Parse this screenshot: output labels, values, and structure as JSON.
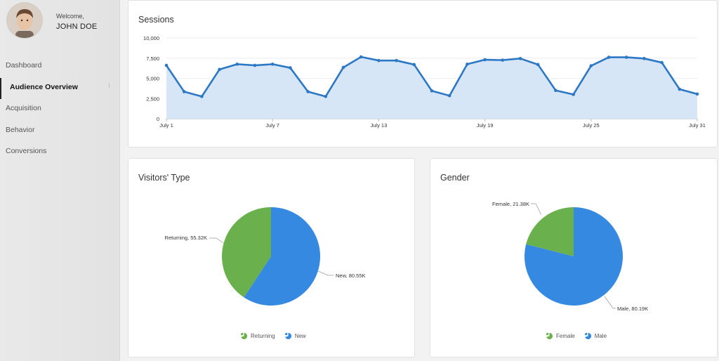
{
  "sidebar": {
    "welcome": "Welcome,",
    "username": "JOHN DOE",
    "items": [
      {
        "label": "Dashboard",
        "active": false
      },
      {
        "label": "Audience Overview",
        "active": true
      },
      {
        "label": "Acquisition",
        "active": false
      },
      {
        "label": "Behavior",
        "active": false
      },
      {
        "label": "Conversions",
        "active": false
      }
    ]
  },
  "colors": {
    "line": "#2d78c4",
    "area": "#d6e6f7",
    "blue": "#3689e0",
    "green": "#6ab04c"
  },
  "sessions_card": {
    "title": "Sessions"
  },
  "visitors_card": {
    "title": "Visitors' Type",
    "labels": {
      "returning": "Returning, 55.32K",
      "new": "New, 80.55K"
    },
    "legend": {
      "returning": "Returning",
      "new": "New"
    }
  },
  "gender_card": {
    "title": "Gender",
    "labels": {
      "female": "Female, 21.38K",
      "male": "Male, 80.19K"
    },
    "legend": {
      "female": "Female",
      "male": "Male"
    }
  },
  "chart_data": [
    {
      "type": "area",
      "title": "Sessions",
      "x_ticks": [
        "July 1",
        "July 7",
        "July 13",
        "July 19",
        "July 25",
        "July 31"
      ],
      "y_ticks": [
        "0",
        "2,500",
        "5,000",
        "7,500",
        "10,000"
      ],
      "ylim": [
        0,
        10000
      ],
      "x": [
        1,
        2,
        3,
        4,
        5,
        6,
        7,
        8,
        9,
        10,
        11,
        12,
        13,
        14,
        15,
        16,
        17,
        18,
        19,
        20,
        21,
        22,
        23,
        24,
        25,
        26,
        27,
        28,
        29,
        30,
        31
      ],
      "values": [
        6600,
        3350,
        2750,
        6100,
        6750,
        6600,
        6750,
        6300,
        3350,
        2750,
        6350,
        7650,
        7200,
        7200,
        6700,
        3450,
        2850,
        6750,
        7300,
        7250,
        7450,
        6700,
        3500,
        3000,
        6550,
        7600,
        7600,
        7450,
        6950,
        3650,
        3050
      ],
      "grid": true
    },
    {
      "type": "pie",
      "title": "Visitors' Type",
      "slices": [
        {
          "name": "Returning",
          "value": 55.32
        },
        {
          "name": "New",
          "value": 80.55
        }
      ],
      "legend": "bottom"
    },
    {
      "type": "pie",
      "title": "Gender",
      "slices": [
        {
          "name": "Female",
          "value": 21.38
        },
        {
          "name": "Male",
          "value": 80.19
        }
      ],
      "legend": "bottom"
    }
  ]
}
